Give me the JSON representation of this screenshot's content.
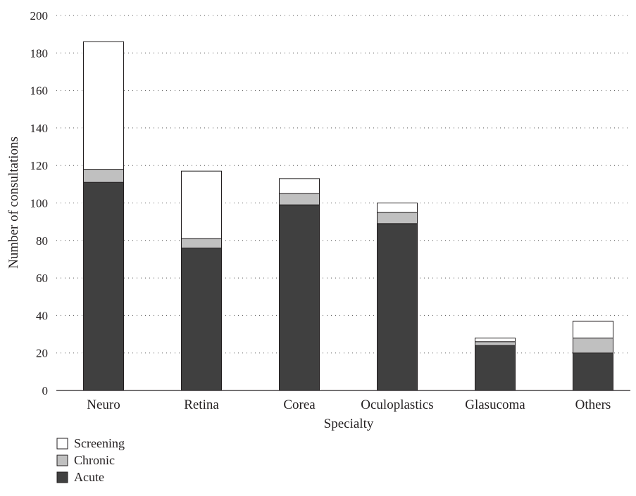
{
  "chart_data": {
    "type": "bar",
    "stacked": true,
    "categories": [
      "Neuro",
      "Retina",
      "Corea",
      "Oculoplastics",
      "Glasucoma",
      "Others"
    ],
    "series": [
      {
        "name": "Acute",
        "values": [
          111,
          76,
          99,
          89,
          24,
          20
        ],
        "color": "#404040"
      },
      {
        "name": "Chronic",
        "values": [
          7,
          5,
          6,
          6,
          2,
          8
        ],
        "color": "#c0c0c0"
      },
      {
        "name": "Screening",
        "values": [
          68,
          36,
          8,
          5,
          2,
          9
        ],
        "color": "#ffffff"
      }
    ],
    "xlabel": "Specialty",
    "ylabel": "Number of consultations",
    "ylim": [
      0,
      200
    ],
    "yticks": [
      "0",
      "20",
      "40",
      "60",
      "80",
      "100",
      "120",
      "140",
      "160",
      "180",
      "200"
    ],
    "grid": "horizontal dotted",
    "legend": {
      "placement": "bottom-left",
      "entries": [
        "Screening",
        "Chronic",
        "Acute"
      ]
    }
  }
}
